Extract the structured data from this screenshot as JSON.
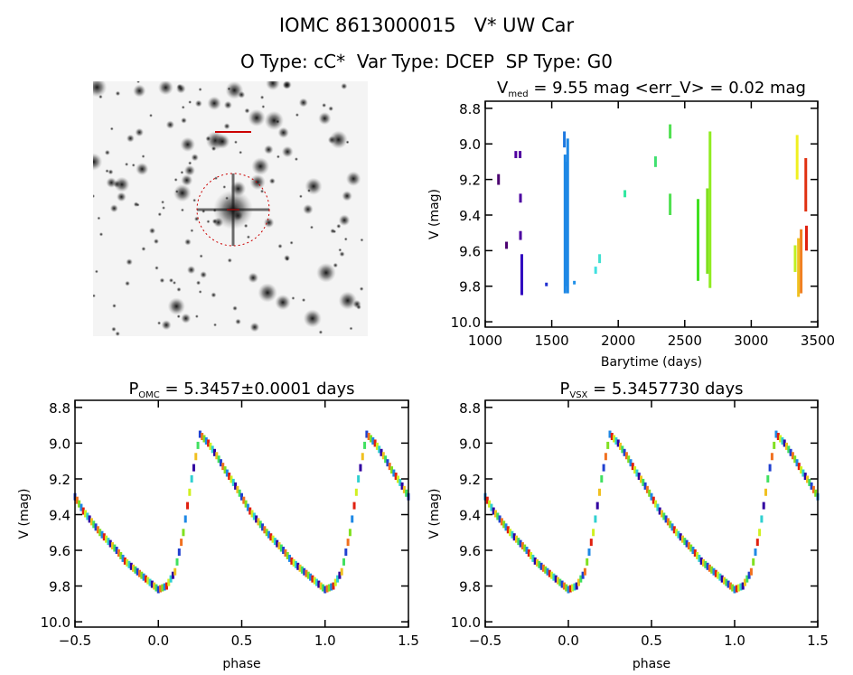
{
  "header": {
    "title": "IOMC 8613000015   V* UW Car",
    "subtitle": "O Type: cC*  Var Type: DCEP  SP Type: G0"
  },
  "image_panel": {
    "description_icon": "star-field-image",
    "marker_color": "#cc0000"
  },
  "chart_data": [
    {
      "type": "scatter",
      "title_main": "V",
      "title_sub": "med",
      "title_rest": " = 9.55 mag <err_V> = 0.02 mag",
      "xlabel": "Barytime (days)",
      "ylabel": "V (mag)",
      "xlim": [
        1000,
        3500
      ],
      "ylim": [
        8.76,
        10.03
      ],
      "y_inverted": true,
      "xticks": [
        1000,
        1500,
        2000,
        2500,
        3000,
        3500
      ],
      "xtick_labels": [
        "1000",
        "1500",
        "2000",
        "2500",
        "3000",
        "3500"
      ],
      "yticks": [
        8.8,
        9.0,
        9.2,
        9.4,
        9.6,
        9.8,
        10.0
      ],
      "ytick_labels": [
        "8.8",
        "9.0",
        "9.2",
        "9.4",
        "9.6",
        "9.8",
        "10.0"
      ],
      "segments": [
        {
          "x": 1100,
          "v": [
            9.17,
            9.23
          ],
          "color": "#4b0070"
        },
        {
          "x": 1160,
          "v": [
            9.55,
            9.59
          ],
          "color": "#4b0070"
        },
        {
          "x": 1230,
          "v": [
            9.04,
            9.08
          ],
          "color": "#5000a0"
        },
        {
          "x": 1262,
          "v": [
            9.04,
            9.08
          ],
          "color": "#5000a0"
        },
        {
          "x": 1265,
          "v": [
            9.28,
            9.33
          ],
          "color": "#4b00a0"
        },
        {
          "x": 1265,
          "v": [
            9.49,
            9.54
          ],
          "color": "#4b00a0"
        },
        {
          "x": 1275,
          "v": [
            9.62,
            9.85
          ],
          "color": "#3000c0"
        },
        {
          "x": 1460,
          "v": [
            9.78,
            9.8
          ],
          "color": "#2030d0"
        },
        {
          "x": 1595,
          "v": [
            8.93,
            9.02
          ],
          "color": "#1e78e0"
        },
        {
          "x": 1600,
          "v": [
            9.06,
            9.84
          ],
          "color": "#1e88e5"
        },
        {
          "x": 1612,
          "v": [
            9.1,
            9.8
          ],
          "color": "#1e88e5"
        },
        {
          "x": 1620,
          "v": [
            8.97,
            9.84
          ],
          "color": "#1e88e5"
        },
        {
          "x": 1670,
          "v": [
            9.77,
            9.79
          ],
          "color": "#2090e8"
        },
        {
          "x": 1830,
          "v": [
            9.69,
            9.73
          ],
          "color": "#40e0e0"
        },
        {
          "x": 1860,
          "v": [
            9.62,
            9.67
          ],
          "color": "#40e0d0"
        },
        {
          "x": 2050,
          "v": [
            9.26,
            9.3
          ],
          "color": "#30e8a0"
        },
        {
          "x": 2280,
          "v": [
            9.07,
            9.13
          ],
          "color": "#40e070"
        },
        {
          "x": 2390,
          "v": [
            8.89,
            8.97
          ],
          "color": "#50e050"
        },
        {
          "x": 2390,
          "v": [
            9.28,
            9.4
          ],
          "color": "#50e050"
        },
        {
          "x": 2600,
          "v": [
            9.31,
            9.77
          ],
          "color": "#40e020"
        },
        {
          "x": 2670,
          "v": [
            9.25,
            9.73
          ],
          "color": "#80e020"
        },
        {
          "x": 2690,
          "v": [
            8.93,
            9.81
          ],
          "color": "#90ec20"
        },
        {
          "x": 3330,
          "v": [
            9.57,
            9.72
          ],
          "color": "#c0f020"
        },
        {
          "x": 3345,
          "v": [
            8.95,
            9.2
          ],
          "color": "#f0f020"
        },
        {
          "x": 3355,
          "v": [
            9.53,
            9.86
          ],
          "color": "#f0c020"
        },
        {
          "x": 3375,
          "v": [
            9.48,
            9.84
          ],
          "color": "#f08020"
        },
        {
          "x": 3410,
          "v": [
            9.08,
            9.38
          ],
          "color": "#e03010"
        },
        {
          "x": 3415,
          "v": [
            9.46,
            9.6
          ],
          "color": "#e02010"
        }
      ]
    },
    {
      "type": "scatter",
      "title_main": "P",
      "title_sub": "OMC",
      "title_rest": " = 5.3457±0.0001 days",
      "xlabel": "phase",
      "ylabel": "V (mag)",
      "xlim": [
        -0.5,
        1.5
      ],
      "ylim": [
        8.76,
        10.03
      ],
      "y_inverted": true,
      "xticks": [
        -0.5,
        0,
        0.5,
        1,
        1.5
      ],
      "xtick_labels": [
        "−0.5",
        "0.0",
        "0.5",
        "1.0",
        "1.5"
      ],
      "yticks": [
        8.8,
        9.0,
        9.2,
        9.4,
        9.6,
        9.8,
        10.0
      ],
      "ytick_labels": [
        "8.8",
        "9.0",
        "9.2",
        "9.4",
        "9.6",
        "9.8",
        "10.0"
      ],
      "phase_curve": {
        "phase": [
          0,
          0.05,
          0.1,
          0.15,
          0.2,
          0.25,
          0.3,
          0.35,
          0.4,
          0.45,
          0.5,
          0.55,
          0.6,
          0.65,
          0.7,
          0.75,
          0.8,
          0.85,
          0.9,
          0.95,
          1.0
        ],
        "v": [
          9.82,
          9.8,
          9.72,
          9.5,
          9.2,
          8.95,
          9.0,
          9.07,
          9.15,
          9.22,
          9.3,
          9.38,
          9.44,
          9.5,
          9.55,
          9.6,
          9.66,
          9.7,
          9.74,
          9.78,
          9.82
        ]
      }
    },
    {
      "type": "scatter",
      "title_main": "P",
      "title_sub": "VSX",
      "title_rest": " = 5.3457730 days",
      "xlabel": "phase",
      "ylabel": "V (mag)",
      "xlim": [
        -0.5,
        1.5
      ],
      "ylim": [
        8.76,
        10.03
      ],
      "y_inverted": true,
      "xticks": [
        -0.5,
        0,
        0.5,
        1,
        1.5
      ],
      "xtick_labels": [
        "−0.5",
        "0.0",
        "0.5",
        "1.0",
        "1.5"
      ],
      "yticks": [
        8.8,
        9.0,
        9.2,
        9.4,
        9.6,
        9.8,
        10.0
      ],
      "ytick_labels": [
        "8.8",
        "9.0",
        "9.2",
        "9.4",
        "9.6",
        "9.8",
        "10.0"
      ],
      "phase_curve": {
        "phase": [
          0,
          0.05,
          0.1,
          0.15,
          0.2,
          0.25,
          0.3,
          0.35,
          0.4,
          0.45,
          0.5,
          0.55,
          0.6,
          0.65,
          0.7,
          0.75,
          0.8,
          0.85,
          0.9,
          0.95,
          1.0
        ],
        "v": [
          9.82,
          9.8,
          9.72,
          9.5,
          9.2,
          8.95,
          9.0,
          9.07,
          9.15,
          9.22,
          9.3,
          9.38,
          9.44,
          9.5,
          9.55,
          9.6,
          9.66,
          9.7,
          9.74,
          9.78,
          9.82
        ]
      }
    }
  ],
  "point_colors": [
    "#3000a0",
    "#2040d0",
    "#1e88e5",
    "#30d0d0",
    "#40e060",
    "#80e020",
    "#d0f020",
    "#f0c020",
    "#f07020",
    "#e02010"
  ]
}
